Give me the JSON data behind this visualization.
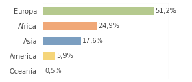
{
  "categories": [
    "Europa",
    "Africa",
    "Asia",
    "America",
    "Oceania"
  ],
  "values": [
    51.2,
    24.9,
    17.6,
    5.9,
    0.5
  ],
  "labels": [
    "51,2%",
    "24,9%",
    "17,6%",
    "5,9%",
    "0,5%"
  ],
  "bar_colors": [
    "#b5c98e",
    "#f0a878",
    "#7b9ec0",
    "#f5d57a",
    "#f08080"
  ],
  "background_color": "#ffffff",
  "xlim": [
    0,
    58
  ],
  "bar_height": 0.55,
  "label_fontsize": 7.0,
  "tick_fontsize": 7.0,
  "border_color": "#cccccc"
}
